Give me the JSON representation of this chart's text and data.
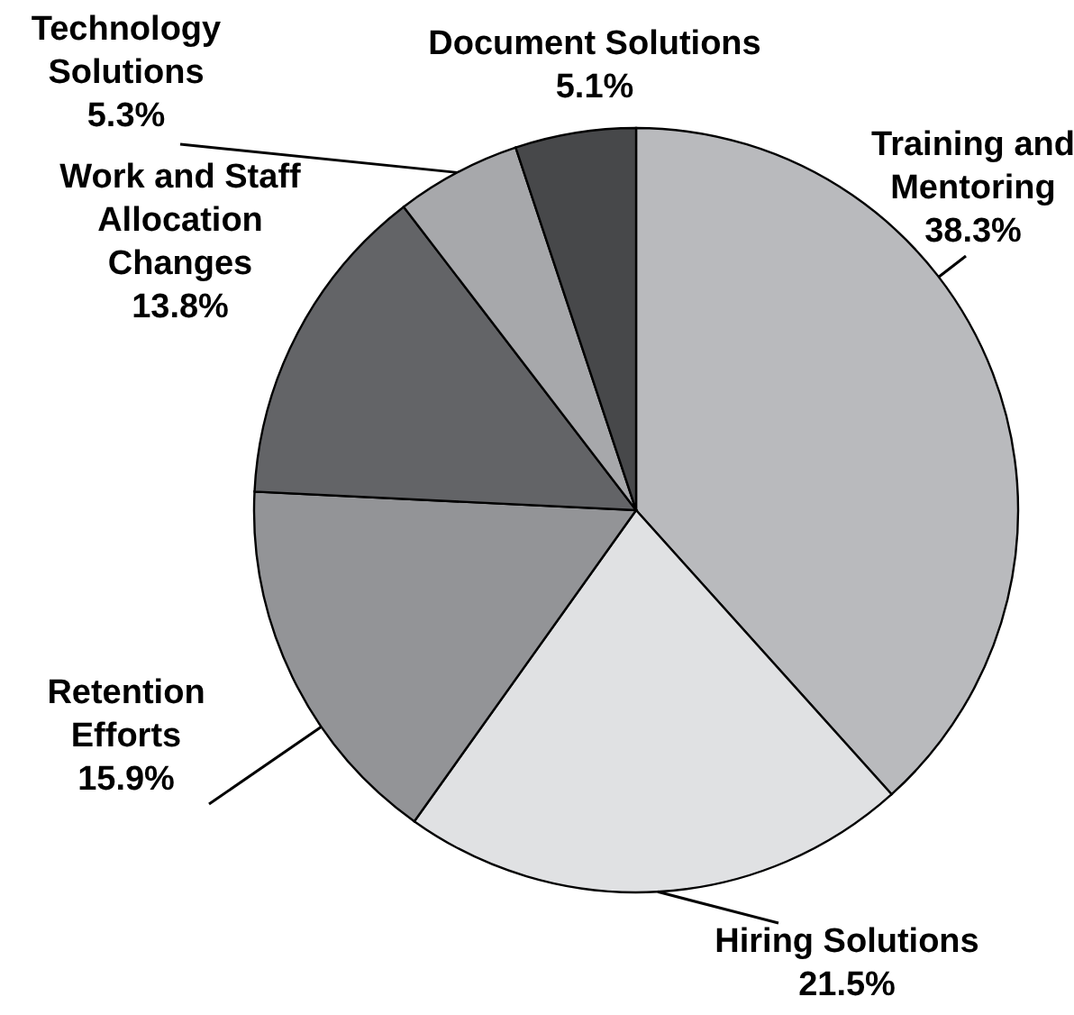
{
  "chart_data": {
    "type": "pie",
    "categories": [
      "Training and Mentoring",
      "Hiring Solutions",
      "Retention Efforts",
      "Work and Staff Allocation Changes",
      "Technology Solutions",
      "Document Solutions"
    ],
    "values": [
      38.3,
      21.5,
      15.9,
      13.8,
      5.3,
      5.1
    ],
    "value_labels": [
      "38.3%",
      "21.5%",
      "15.9%",
      "13.8%",
      "5.3%",
      "5.1%"
    ],
    "colors": [
      "#b9babd",
      "#e0e1e3",
      "#939497",
      "#636467",
      "#a7a8ab",
      "#47484a"
    ]
  }
}
